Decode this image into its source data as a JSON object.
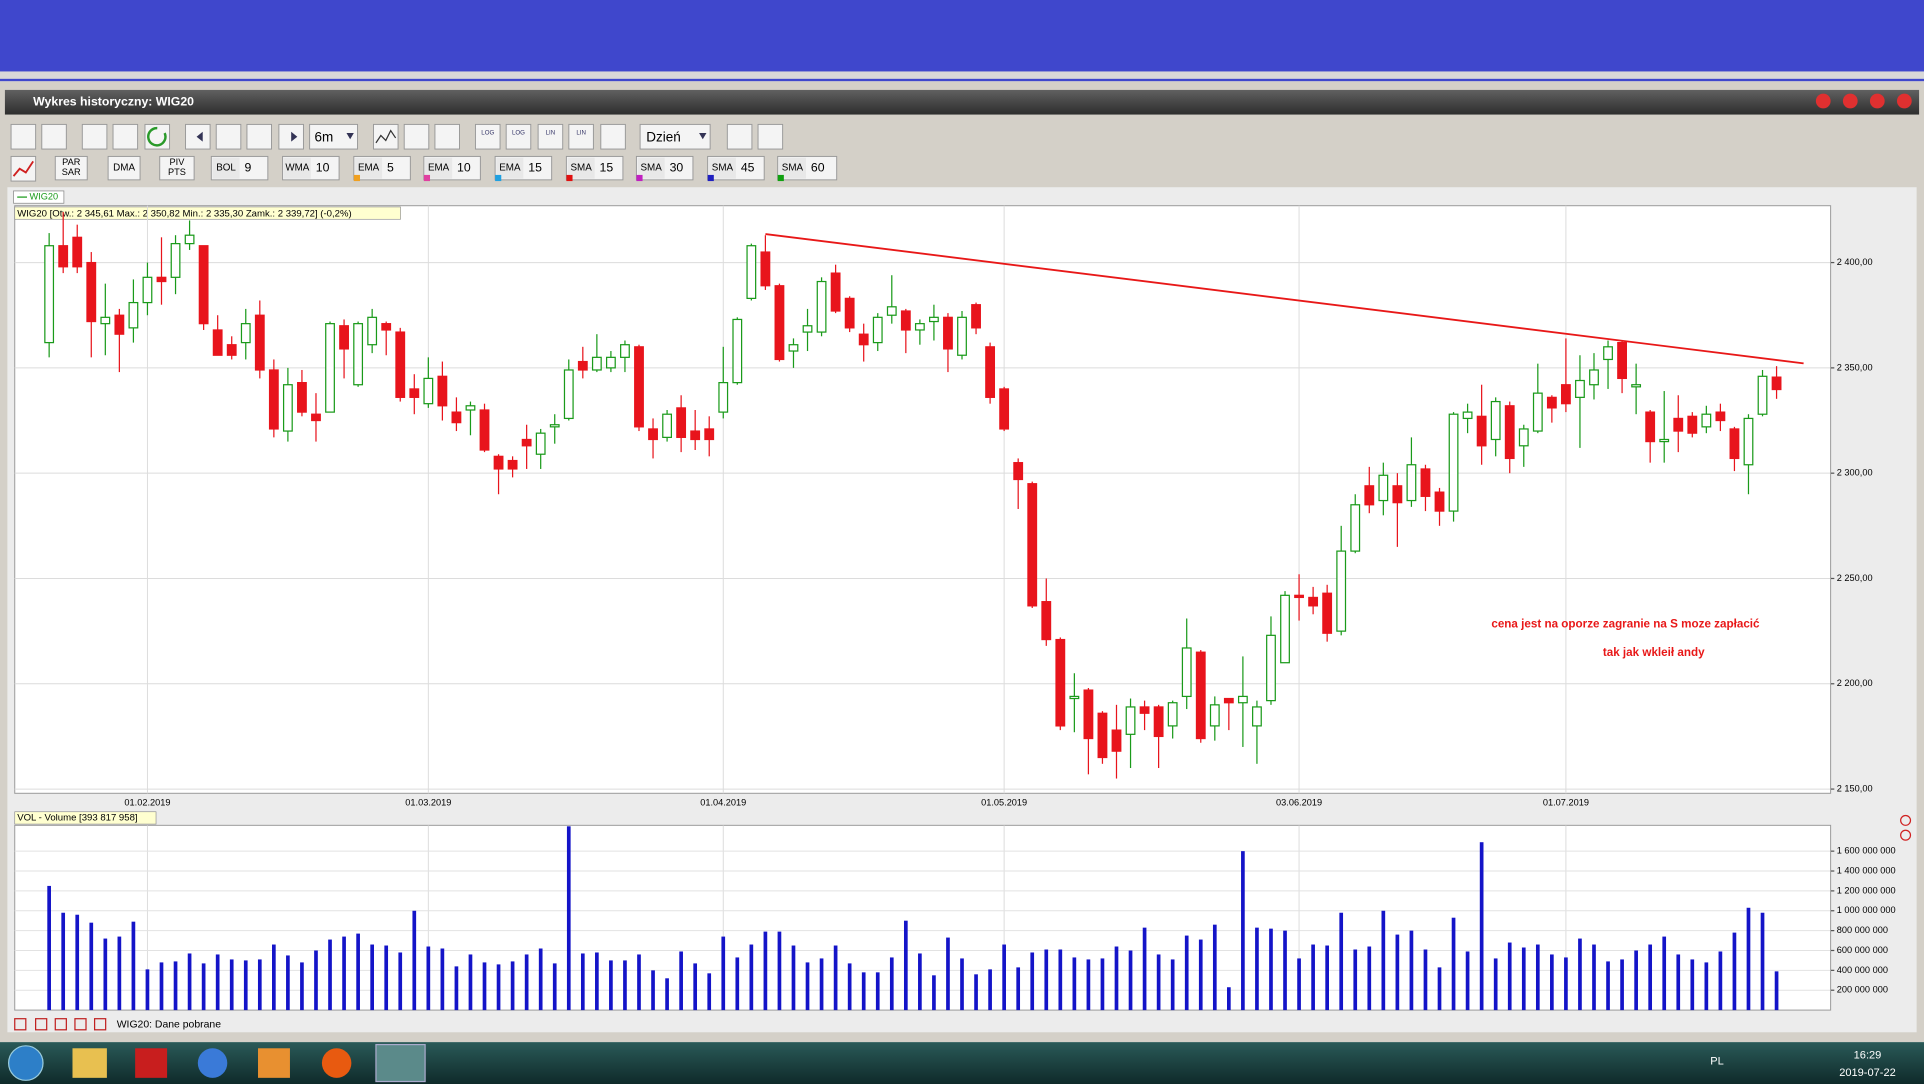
{
  "window": {
    "title": "Wykres historyczny: WIG20"
  },
  "toolbar": {
    "period": "6m",
    "interval": "Dzień",
    "icon_labels": [
      "LOG",
      "LOG",
      "LIN",
      "LIN"
    ],
    "indicators": [
      {
        "top": "PAR",
        "bottom": "SAR"
      },
      {
        "name": "DMA"
      },
      {
        "top": "PIV",
        "bottom": "PTS"
      },
      {
        "name": "BOL",
        "param": "9"
      },
      {
        "name": "WMA",
        "param": "10"
      },
      {
        "name": "EMA",
        "param": "5"
      },
      {
        "name": "EMA",
        "param": "10"
      },
      {
        "name": "EMA",
        "param": "15"
      },
      {
        "name": "SMA",
        "param": "15"
      },
      {
        "name": "SMA",
        "param": "30"
      },
      {
        "name": "SMA",
        "param": "45"
      },
      {
        "name": "SMA",
        "param": "60"
      }
    ]
  },
  "chart_data": {
    "type": "candlestick",
    "legend": "WIG20",
    "info": "WIG20 [Otw.: 2 345,61  Max.: 2 350,82  Min.: 2 335,30  Zamk.: 2 339,72] (-0,2%)",
    "up_color": "#1a9a1a",
    "down_color": "#e8141c",
    "candles": {
      "open": [
        2362,
        2408,
        2412,
        2400,
        2371,
        2375,
        2369,
        2381,
        2393,
        2393,
        2409,
        2408,
        2368,
        2361,
        2362,
        2375,
        2349,
        2320,
        2343,
        2328,
        2329,
        2370,
        2342,
        2361,
        2371,
        2367,
        2340,
        2333,
        2346,
        2329,
        2330,
        2330,
        2308,
        2306,
        2316,
        2309,
        2322,
        2326,
        2353,
        2349,
        2350,
        2355,
        2360,
        2321,
        2317,
        2331,
        2320,
        2321,
        2329,
        2343,
        2383,
        2405,
        2389,
        2358,
        2367,
        2367,
        2395,
        2383,
        2366,
        2362,
        2375,
        2377,
        2368,
        2372,
        2374,
        2356,
        2380,
        2360,
        2340,
        2305,
        2295,
        2239,
        2221,
        2193,
        2197,
        2186,
        2178,
        2176,
        2189,
        2189,
        2180,
        2194,
        2215,
        2180,
        2193,
        2191,
        2180,
        2192,
        2210,
        2242,
        2241,
        2243,
        2225,
        2263,
        2294,
        2287,
        2294,
        2287,
        2302,
        2291,
        2282,
        2326,
        2327,
        2316,
        2332,
        2313,
        2320,
        2336,
        2342,
        2336,
        2342,
        2354,
        2362,
        2341,
        2329,
        2315,
        2326,
        2327,
        2322,
        2329,
        2321,
        2304,
        2328,
        2345.61
      ],
      "high": [
        2414,
        2424,
        2418,
        2405,
        2390,
        2378,
        2392,
        2400,
        2412,
        2413,
        2420,
        2408,
        2375,
        2365,
        2378,
        2382,
        2354,
        2350,
        2349,
        2338,
        2372,
        2373,
        2372,
        2378,
        2372,
        2369,
        2347,
        2355,
        2353,
        2336,
        2334,
        2333,
        2309,
        2308,
        2323,
        2321,
        2328,
        2354,
        2360,
        2366,
        2358,
        2363,
        2361,
        2326,
        2330,
        2337,
        2330,
        2327,
        2360,
        2374,
        2409,
        2413,
        2390,
        2364,
        2378,
        2393,
        2399,
        2384,
        2371,
        2376,
        2394,
        2378,
        2373,
        2380,
        2376,
        2377,
        2381,
        2362,
        2341,
        2307,
        2296,
        2250,
        2222,
        2205,
        2198,
        2187,
        2190,
        2193,
        2192,
        2190,
        2192,
        2231,
        2216,
        2194,
        2193,
        2213,
        2192,
        2232,
        2244,
        2252,
        2246,
        2247,
        2275,
        2290,
        2303,
        2305,
        2300,
        2317,
        2304,
        2293,
        2329,
        2333,
        2342,
        2336,
        2334,
        2323,
        2352,
        2337,
        2364,
        2356,
        2357,
        2363,
        2363,
        2352,
        2330,
        2339,
        2337,
        2329,
        2332,
        2333,
        2322,
        2328,
        2349,
        2350.82
      ],
      "low": [
        2355,
        2395,
        2395,
        2355,
        2356,
        2348,
        2362,
        2375,
        2380,
        2385,
        2406,
        2368,
        2356,
        2354,
        2354,
        2345,
        2317,
        2315,
        2327,
        2315,
        2329,
        2345,
        2341,
        2357,
        2356,
        2334,
        2328,
        2331,
        2325,
        2320,
        2318,
        2310,
        2290,
        2298,
        2302,
        2302,
        2314,
        2325,
        2345,
        2348,
        2348,
        2348,
        2320,
        2307,
        2315,
        2310,
        2311,
        2308,
        2326,
        2342,
        2382,
        2387,
        2353,
        2350,
        2358,
        2365,
        2376,
        2367,
        2353,
        2358,
        2371,
        2357,
        2361,
        2363,
        2348,
        2354,
        2366,
        2333,
        2320,
        2283,
        2236,
        2218,
        2178,
        2177,
        2157,
        2162,
        2155,
        2160,
        2178,
        2160,
        2174,
        2188,
        2172,
        2173,
        2178,
        2170,
        2162,
        2190,
        2210,
        2230,
        2233,
        2220,
        2223,
        2262,
        2281,
        2280,
        2265,
        2284,
        2282,
        2275,
        2277,
        2319,
        2304,
        2308,
        2300,
        2303,
        2319,
        2324,
        2329,
        2312,
        2335,
        2340,
        2338,
        2328,
        2305,
        2305,
        2310,
        2317,
        2319,
        2320,
        2301,
        2290,
        2327,
        2335.3
      ],
      "close": [
        2408,
        2398,
        2398,
        2372,
        2374,
        2366,
        2381,
        2393,
        2391,
        2409,
        2413,
        2371,
        2356,
        2356,
        2371,
        2349,
        2321,
        2342,
        2329,
        2325,
        2371,
        2359,
        2371,
        2374,
        2368,
        2336,
        2336,
        2345,
        2332,
        2324,
        2332,
        2311,
        2302,
        2302,
        2313,
        2319,
        2323,
        2349,
        2349,
        2355,
        2355,
        2361,
        2322,
        2316,
        2328,
        2317,
        2316,
        2316,
        2343,
        2373,
        2408,
        2389,
        2354,
        2361,
        2370,
        2391,
        2377,
        2369,
        2361,
        2374,
        2379,
        2368,
        2371,
        2374,
        2359,
        2374,
        2369,
        2336,
        2321,
        2297,
        2237,
        2221,
        2180,
        2194,
        2174,
        2165,
        2168,
        2189,
        2186,
        2175,
        2191,
        2217,
        2174,
        2190,
        2191,
        2194,
        2189,
        2223,
        2242,
        2241,
        2237,
        2224,
        2263,
        2285,
        2285,
        2299,
        2286,
        2304,
        2289,
        2282,
        2328,
        2329,
        2313,
        2334,
        2307,
        2321,
        2338,
        2331,
        2333,
        2344,
        2349,
        2360,
        2345,
        2342,
        2315,
        2316,
        2320,
        2319,
        2328,
        2325,
        2307,
        2326,
        2346,
        2339.72
      ]
    },
    "ylim": [
      2148,
      2427
    ],
    "yticks": [
      {
        "value": 2150,
        "label": "2 150,00"
      },
      {
        "value": 2200,
        "label": "2 200,00"
      },
      {
        "value": 2250,
        "label": "2 250,00"
      },
      {
        "value": 2300,
        "label": "2 300,00"
      },
      {
        "value": 2350,
        "label": "2 350,00"
      },
      {
        "value": 2400,
        "label": "2 400,00"
      }
    ],
    "xticks": [
      {
        "value": 7,
        "label": "01.02.2019"
      },
      {
        "value": 27,
        "label": "01.03.2019"
      },
      {
        "value": 48,
        "label": "01.04.2019"
      },
      {
        "value": 68,
        "label": "01.05.2019"
      },
      {
        "value": 89,
        "label": "03.06.2019"
      },
      {
        "value": 108,
        "label": "01.07.2019"
      }
    ],
    "grid": true,
    "annotations": [
      "cena jest na oporze zagranie na S moze zapłacić",
      "tak jak wkleił andy"
    ],
    "volume": {
      "title": "VOL - Volume [393 817 958]",
      "color": "#1414c8",
      "values": [
        1250000000,
        980000000,
        960000000,
        880000000,
        720000000,
        740000000,
        890000000,
        410000000,
        480000000,
        490000000,
        570000000,
        470000000,
        560000000,
        510000000,
        500000000,
        510000000,
        660000000,
        550000000,
        480000000,
        600000000,
        710000000,
        740000000,
        770000000,
        660000000,
        650000000,
        580000000,
        1000000000,
        640000000,
        620000000,
        440000000,
        560000000,
        480000000,
        460000000,
        490000000,
        560000000,
        620000000,
        470000000,
        1850000000,
        570000000,
        580000000,
        500000000,
        500000000,
        560000000,
        400000000,
        320000000,
        590000000,
        470000000,
        370000000,
        740000000,
        530000000,
        660000000,
        790000000,
        790000000,
        650000000,
        480000000,
        520000000,
        650000000,
        470000000,
        380000000,
        380000000,
        530000000,
        900000000,
        570000000,
        350000000,
        730000000,
        520000000,
        360000000,
        410000000,
        660000000,
        430000000,
        580000000,
        610000000,
        610000000,
        530000000,
        510000000,
        520000000,
        640000000,
        600000000,
        830000000,
        560000000,
        510000000,
        750000000,
        710000000,
        860000000,
        230000000,
        1600000000,
        830000000,
        820000000,
        800000000,
        520000000,
        660000000,
        650000000,
        980000000,
        610000000,
        640000000,
        1000000000,
        760000000,
        800000000,
        610000000,
        430000000,
        930000000,
        590000000,
        1690000000,
        520000000,
        680000000,
        630000000,
        660000000,
        560000000,
        530000000,
        720000000,
        660000000,
        490000000,
        510000000,
        600000000,
        660000000,
        740000000,
        560000000,
        510000000,
        480000000,
        590000000,
        780000000,
        1030000000,
        980000000,
        390000000
      ],
      "ylim": [
        0,
        1860000000
      ],
      "yticks": [
        {
          "value": 200000000,
          "label": "200 000 000"
        },
        {
          "value": 400000000,
          "label": "400 000 000"
        },
        {
          "value": 600000000,
          "label": "600 000 000"
        },
        {
          "value": 800000000,
          "label": "800 000 000"
        },
        {
          "value": 1000000000,
          "label": "1 000 000 000"
        },
        {
          "value": 1200000000,
          "label": "1 200 000 000"
        },
        {
          "value": 1400000000,
          "label": "1 400 000 000"
        },
        {
          "value": 1600000000,
          "label": "1 600 000 000"
        }
      ]
    }
  },
  "status": "WIG20: Dane pobrane",
  "taskbar": {
    "lang": "PL",
    "time": "16:29",
    "date": "2019-07-22"
  }
}
